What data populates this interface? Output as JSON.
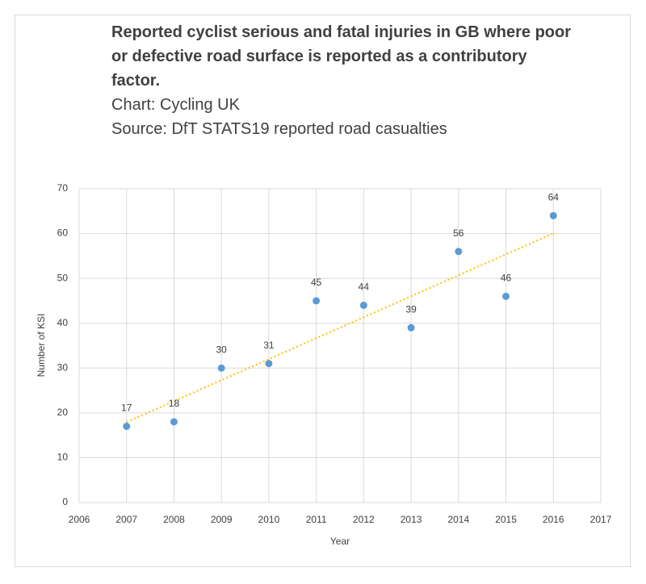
{
  "chart_data": {
    "type": "scatter",
    "title": "Reported cyclist serious and fatal injuries in GB where poor or defective road surface is reported as a contributory factor.",
    "subtitles": [
      "Chart: Cycling UK",
      "Source: DfT STATS19 reported road casualties"
    ],
    "x_label": "Year",
    "y_label": "Number of KSI",
    "x": [
      2007,
      2008,
      2009,
      2010,
      2011,
      2012,
      2013,
      2014,
      2015,
      2016
    ],
    "values": [
      17,
      18,
      30,
      31,
      45,
      44,
      39,
      56,
      46,
      64
    ],
    "color": "#5b9bd5",
    "trendline": "linear",
    "trendline_color": "#ffc000",
    "xlim": [
      2006,
      2017
    ],
    "xticks": [
      2006,
      2007,
      2008,
      2009,
      2010,
      2011,
      2012,
      2013,
      2014,
      2015,
      2016,
      2017
    ],
    "ylim": [
      0,
      70
    ],
    "yticks": [
      0,
      10,
      20,
      30,
      40,
      50,
      60,
      70
    ],
    "grid": true
  }
}
